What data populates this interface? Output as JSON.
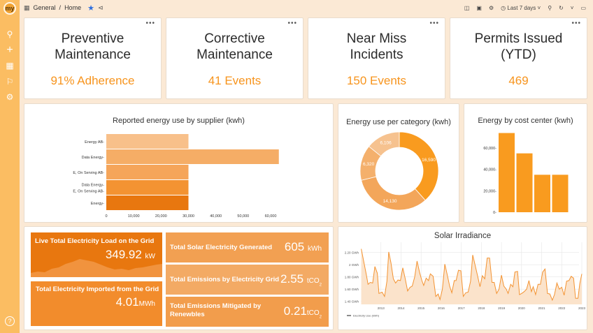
{
  "sidebar": {
    "logo": "my",
    "items": [
      {
        "icon": "search-icon"
      },
      {
        "icon": "plus-icon"
      },
      {
        "icon": "dashboards-icon"
      },
      {
        "icon": "alert-bell-icon"
      },
      {
        "icon": "gear-icon"
      }
    ],
    "help_icon": "help-icon"
  },
  "topbar": {
    "breadcrumb": [
      "General",
      "Home"
    ],
    "separator": "/",
    "time_range": "Last 7 days"
  },
  "kpis": [
    {
      "title": "Preventive Maintenance",
      "value": "91% Adherence"
    },
    {
      "title": "Corrective Maintenance",
      "value": "41 Events"
    },
    {
      "title": "Near Miss Incidents",
      "value": "150 Events"
    },
    {
      "title": "Permits Issued (YTD)",
      "value": "469"
    }
  ],
  "colors": {
    "accent": "#f7941d",
    "background": "#fbe9d5",
    "sidebar": "#fbbd62"
  },
  "chart_data": [
    {
      "type": "bar",
      "orientation": "horizontal",
      "title": "Reported energy use by supplier (kwh)",
      "categories": [
        "Energy AB",
        "Data Energy",
        "E, On Serving AB",
        "Data Energy-\nE, On Serving AB",
        "Energy"
      ],
      "values": [
        30000,
        63000,
        30000,
        30000,
        30000
      ],
      "xticks": [
        "0",
        "10,000",
        "20,000",
        "30,000",
        "40,000",
        "50,000",
        "60,000"
      ],
      "xlim": [
        0,
        64000
      ],
      "colors": [
        "#f8c08a",
        "#f5ad66",
        "#f5a55a",
        "#f39332",
        "#e8770f"
      ]
    },
    {
      "type": "pie",
      "donut": true,
      "title": "Energy use per category (kwh)",
      "values": [
        16590,
        14130,
        6320,
        6106
      ],
      "labels": [
        "16,590",
        "14,130",
        "6,320",
        "6,106"
      ],
      "colors": [
        "#f99b1f",
        "#f3a65a",
        "#f4b06c",
        "#f6c28f"
      ]
    },
    {
      "type": "bar",
      "title": "Energy by cost center (kwh)",
      "values": [
        74000,
        55000,
        35000,
        35000
      ],
      "yticks": [
        "0",
        "20,000",
        "40,000",
        "60,000"
      ],
      "ylim": [
        0,
        80000
      ],
      "color": "#f99b1f"
    },
    {
      "type": "area",
      "title": "Solar Irradiance",
      "legend": "Electricity Use (kWh)",
      "yticks": [
        "1.40 GWh",
        "1.60 GWh",
        "1.80 GWh",
        "2 GWh",
        "2.20 GWh"
      ],
      "ylim": [
        1.35,
        2.3
      ],
      "xticks": [
        "2013",
        "2014",
        "2015",
        "2016",
        "2017",
        "2018",
        "2019",
        "2020",
        "2021",
        "2022",
        "2023"
      ],
      "xlim": [
        2012,
        2023
      ],
      "x": [
        2012.02,
        2012.17,
        2012.27,
        2012.36,
        2012.47,
        2012.59,
        2012.7,
        2012.82,
        2012.9,
        2013.06,
        2013.18,
        2013.3,
        2013.39,
        2013.5,
        2013.62,
        2013.73,
        2013.85,
        2013.97,
        2014.09,
        2014.21,
        2014.33,
        2014.45,
        2014.56,
        2014.68,
        2014.8,
        2014.92,
        2015.04,
        2015.13,
        2015.25,
        2015.37,
        2015.46,
        2015.6,
        2015.73,
        2015.85,
        2015.94,
        2016.06,
        2016.18,
        2016.3,
        2016.42,
        2016.53,
        2016.65,
        2016.74,
        2016.86,
        2016.98,
        2017.1,
        2017.22,
        2017.34,
        2017.46,
        2017.57,
        2017.69,
        2017.81,
        2017.93,
        2018.05,
        2018.17,
        2018.29,
        2018.41,
        2018.53,
        2018.64,
        2018.76,
        2018.88,
        2019.0,
        2019.12,
        2019.24,
        2019.33,
        2019.46,
        2019.57,
        2019.67,
        2019.8,
        2019.9,
        2020.01,
        2020.13,
        2020.25,
        2020.37,
        2020.49,
        2020.58,
        2020.7,
        2020.82,
        2020.94,
        2021.05,
        2021.17,
        2021.29,
        2021.41,
        2021.53,
        2021.64,
        2021.76,
        2021.88,
        2022.0,
        2022.12,
        2022.24,
        2022.36,
        2022.47,
        2022.59,
        2022.69,
        2022.81,
        2022.9,
        2023.0
      ],
      "y": [
        2.26,
        2.01,
        1.84,
        1.68,
        1.71,
        1.7,
        1.97,
        1.86,
        1.53,
        1.55,
        1.48,
        1.73,
        2.21,
        2.03,
        1.77,
        1.7,
        1.75,
        1.74,
        1.95,
        1.77,
        1.57,
        1.63,
        1.65,
        1.8,
        2.06,
        1.88,
        1.74,
        1.66,
        1.78,
        1.74,
        1.85,
        1.81,
        1.48,
        1.52,
        1.43,
        1.6,
        2.01,
        1.84,
        1.65,
        1.54,
        1.74,
        1.74,
        1.91,
        1.9,
        1.48,
        1.54,
        1.55,
        1.73,
        2.16,
        1.99,
        1.82,
        1.64,
        1.82,
        1.77,
        2.11,
        2.11,
        1.71,
        1.71,
        1.53,
        1.6,
        1.83,
        1.65,
        1.6,
        1.53,
        1.68,
        1.64,
        1.88,
        1.89,
        1.51,
        1.53,
        1.56,
        1.6,
        1.74,
        1.56,
        1.64,
        1.51,
        1.68,
        1.68,
        1.88,
        1.93,
        1.53,
        1.52,
        1.42,
        1.51,
        1.7,
        1.6,
        1.63,
        1.5,
        1.73,
        1.74,
        1.81,
        1.78,
        1.45,
        1.45,
        1.69,
        1.85
      ],
      "color": "#f39332"
    }
  ],
  "stats": {
    "live_load": {
      "title": "Live Total Electricity Load on the Grid",
      "value": "349.92",
      "unit": "kW"
    },
    "imported": {
      "title": "Total Electricity Imported from the Grid",
      "value": "4.01",
      "unit": "MWh"
    },
    "solar": {
      "title": "Total Solar Electricity Generated",
      "value": "605",
      "unit": "kWh"
    },
    "emissions": {
      "title": "Total Emissions by Electricity Grid",
      "value": "2.55",
      "unit": "tCO",
      "sub": "2"
    },
    "mitigated": {
      "title": "Total Emissions Mitigated by Renewbles",
      "value": "0.21",
      "unit": "tCO",
      "sub": "2"
    }
  }
}
